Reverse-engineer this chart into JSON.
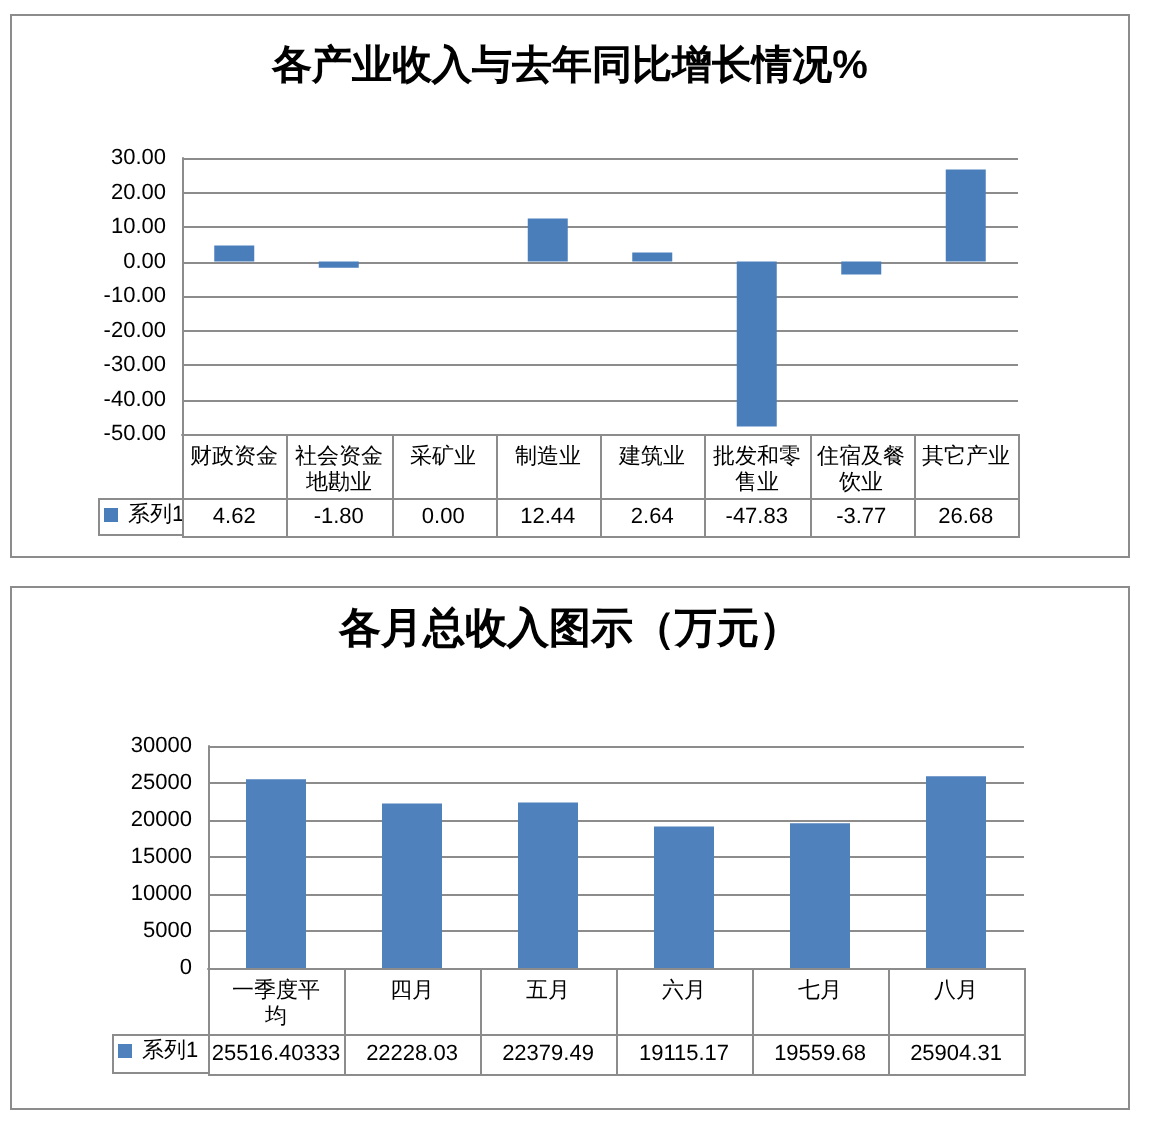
{
  "chart_data": [
    {
      "type": "bar",
      "title": "各产业收入与去年同比增长情况%",
      "categories": [
        "财政资金",
        "社会资金地勘业",
        "采矿业",
        "制造业",
        "建筑业",
        "批发和零售业",
        "住宿及餐饮业",
        "其它产业"
      ],
      "series": [
        {
          "name": "系列1",
          "color": "#4a7ebb",
          "values": [
            4.62,
            -1.8,
            0.0,
            12.44,
            2.64,
            -47.83,
            -3.77,
            26.68
          ],
          "value_labels": [
            "4.62",
            "-1.80",
            "0.00",
            "12.44",
            "2.64",
            "-47.83",
            "-3.77",
            "26.68"
          ]
        }
      ],
      "ylim": [
        -50,
        30
      ],
      "yticks": [
        {
          "value": -50,
          "label": "-50.00"
        },
        {
          "value": -40,
          "label": "-40.00"
        },
        {
          "value": -30,
          "label": "-30.00"
        },
        {
          "value": -20,
          "label": "-20.00"
        },
        {
          "value": -10,
          "label": "-10.00"
        },
        {
          "value": 0,
          "label": "0.00"
        },
        {
          "value": 10,
          "label": "10.00"
        },
        {
          "value": 20,
          "label": "20.00"
        },
        {
          "value": 30,
          "label": "30.00"
        }
      ],
      "grid": "y",
      "legend": "bottom left"
    },
    {
      "type": "bar",
      "title": "各月总收入图示（万元）",
      "categories": [
        "一季度平均",
        "四月",
        "五月",
        "六月",
        "七月",
        "八月"
      ],
      "series": [
        {
          "name": "系列1",
          "color": "#4f81bd",
          "values": [
            25516.40333,
            22228.03,
            22379.49,
            19115.17,
            19559.68,
            25904.31
          ],
          "value_labels": [
            "25516.40333",
            "22228.03",
            "22379.49",
            "19115.17",
            "19559.68",
            "25904.31"
          ]
        }
      ],
      "ylim": [
        0,
        30000
      ],
      "yticks": [
        0,
        5000,
        10000,
        15000,
        20000,
        25000,
        30000
      ],
      "grid": "y",
      "legend": "bottom left"
    }
  ]
}
